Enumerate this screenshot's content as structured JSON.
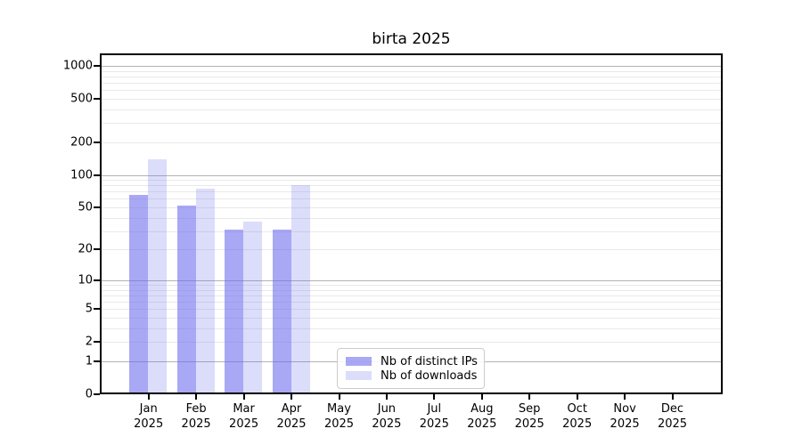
{
  "title": "birta 2025",
  "chart_data": {
    "type": "bar",
    "title": "birta 2025",
    "categories": [
      "Jan",
      "Feb",
      "Mar",
      "Apr",
      "May",
      "Jun",
      "Jul",
      "Aug",
      "Sep",
      "Oct",
      "Nov",
      "Dec"
    ],
    "x_year_label": "2025",
    "series": [
      {
        "name": "Nb of distinct IPs",
        "color": "rgba(102,102,238,0.57)",
        "values": [
          65,
          52,
          31,
          31,
          0,
          0,
          0,
          0,
          0,
          0,
          0,
          0
        ]
      },
      {
        "name": "Nb of downloads",
        "color": "rgba(102,102,238,0.23)",
        "values": [
          140,
          75,
          37,
          81,
          0,
          0,
          0,
          0,
          0,
          0,
          0,
          0
        ]
      }
    ],
    "yscale": "log10(1+x)",
    "ylim": [
      0,
      1300
    ],
    "y_tick_values": [
      0,
      1,
      2,
      5,
      10,
      20,
      50,
      100,
      200,
      500,
      1000
    ],
    "y_tick_labels": [
      "0",
      "1",
      "2",
      "5",
      "10",
      "20",
      "50",
      "100",
      "200",
      "500",
      "1000"
    ],
    "grid": {
      "enabled": true,
      "major_color": "#b3b3b3",
      "minor_color": "#e9e9e9"
    },
    "legend": {
      "position": "lower-center-inside"
    }
  },
  "colors": {
    "spine": "#000000",
    "text": "#000000",
    "background": "#ffffff"
  }
}
